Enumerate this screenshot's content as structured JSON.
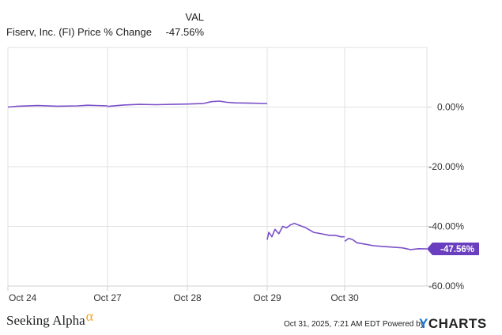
{
  "legend": {
    "header": "VAL",
    "series_name": "Fiserv, Inc. (FI) Price % Change",
    "series_value": "-47.56%"
  },
  "footer": {
    "brand": "Seeking Alpha",
    "brand_symbol": "α",
    "timestamp": "Oct 31, 2025, 7:21 AM EDT Powered by",
    "ycharts_y": "Y",
    "ycharts_rest": "CHARTS"
  },
  "colors": {
    "line": "#7b4fc9",
    "badge": "#6a3fbf",
    "grid": "#e2e2e2",
    "alpha": "#f5a623",
    "ycharts_blue": "#1a73c9"
  },
  "chart_data": {
    "type": "line",
    "title": "",
    "xlabel": "",
    "ylabel": "",
    "x_ticks": [
      "Oct 24",
      "Oct 27",
      "Oct 28",
      "Oct 29",
      "Oct 30"
    ],
    "y_ticks": [
      "0.00%",
      "-20.00%",
      "-40.00%",
      "-60.00%"
    ],
    "y_tick_values": [
      0,
      -20,
      -40,
      -60
    ],
    "ylim": [
      -60,
      20
    ],
    "grid": true,
    "last_value_label": "-47.56%",
    "series": [
      {
        "name": "Fiserv, Inc. (FI) Price % Change",
        "segments": [
          [
            [
              0.0,
              0.0
            ],
            [
              0.1,
              0.3
            ],
            [
              0.3,
              0.5
            ],
            [
              0.5,
              0.3
            ],
            [
              0.7,
              0.4
            ],
            [
              0.8,
              0.6
            ],
            [
              1.0,
              0.4
            ]
          ],
          [
            [
              1.0,
              0.2
            ],
            [
              1.2,
              0.7
            ],
            [
              1.4,
              0.9
            ],
            [
              1.6,
              0.8
            ],
            [
              1.8,
              0.9
            ],
            [
              2.0,
              1.0
            ],
            [
              2.2,
              1.2
            ],
            [
              2.3,
              1.8
            ],
            [
              2.4,
              2.0
            ],
            [
              2.5,
              1.6
            ],
            [
              2.6,
              1.4
            ],
            [
              2.8,
              1.3
            ],
            [
              3.0,
              1.2
            ]
          ],
          [
            [
              3.0,
              -44.5
            ],
            [
              3.02,
              -42.0
            ],
            [
              3.06,
              -43.5
            ],
            [
              3.1,
              -41.0
            ],
            [
              3.15,
              -42.5
            ],
            [
              3.2,
              -40.0
            ],
            [
              3.25,
              -40.5
            ],
            [
              3.3,
              -39.5
            ],
            [
              3.35,
              -39.0
            ],
            [
              3.4,
              -39.5
            ],
            [
              3.5,
              -40.5
            ],
            [
              3.6,
              -42.0
            ],
            [
              3.7,
              -42.5
            ],
            [
              3.8,
              -43.0
            ],
            [
              3.88,
              -43.0
            ],
            [
              3.95,
              -43.5
            ],
            [
              4.0,
              -43.5
            ]
          ],
          [
            [
              4.0,
              -45.0
            ],
            [
              4.05,
              -44.0
            ],
            [
              4.1,
              -44.5
            ],
            [
              4.15,
              -45.5
            ],
            [
              4.25,
              -46.0
            ],
            [
              4.35,
              -46.5
            ],
            [
              4.5,
              -46.8
            ],
            [
              4.6,
              -47.0
            ],
            [
              4.7,
              -47.2
            ],
            [
              4.8,
              -47.8
            ],
            [
              4.9,
              -47.5
            ],
            [
              5.0,
              -47.56
            ]
          ]
        ]
      }
    ]
  }
}
